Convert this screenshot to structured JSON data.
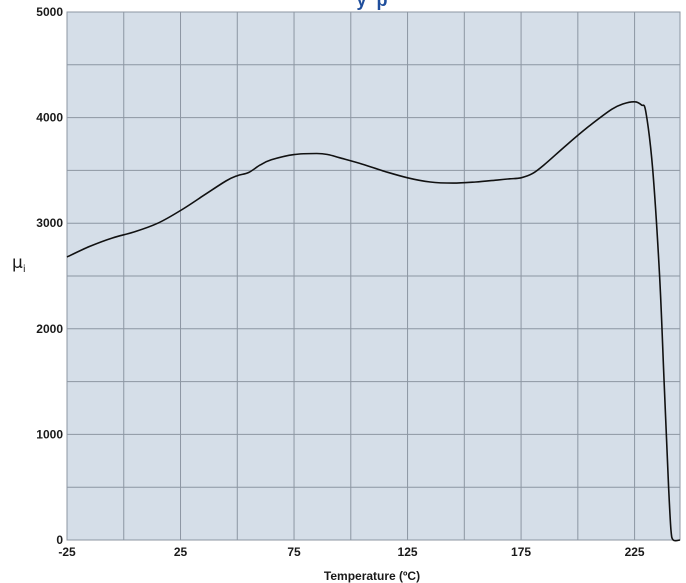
{
  "colors": {
    "plot_background": "#d5dee8",
    "grid": "#8c96a2",
    "curve": "#111111",
    "title": "#1f4e9c"
  },
  "chart_data": {
    "type": "line",
    "title_partial": "y  p",
    "xlabel": "Temperature (ºC)",
    "ylabel": "μ",
    "ylabel_subscript": "i",
    "xlim": [
      -25,
      245
    ],
    "ylim": [
      0,
      5000
    ],
    "x_ticks": [
      -25,
      25,
      75,
      125,
      175,
      225
    ],
    "y_ticks": [
      0,
      1000,
      2000,
      3000,
      4000,
      5000
    ],
    "grid": true,
    "series": [
      {
        "x": [
          -25,
          -15,
          -5,
          5,
          15,
          25,
          35,
          45,
          50,
          55,
          60,
          65,
          75,
          85,
          90,
          95,
          105,
          115,
          125,
          135,
          145,
          155,
          165,
          170,
          175,
          180,
          185,
          195,
          205,
          215,
          220,
          225,
          228,
          230,
          233,
          236,
          238,
          240,
          241,
          242,
          245
        ],
        "y": [
          2680,
          2780,
          2860,
          2920,
          3000,
          3120,
          3260,
          3400,
          3450,
          3480,
          3550,
          3600,
          3650,
          3660,
          3650,
          3620,
          3560,
          3490,
          3430,
          3390,
          3380,
          3390,
          3410,
          3420,
          3430,
          3470,
          3550,
          3740,
          3920,
          4080,
          4130,
          4150,
          4120,
          4050,
          3500,
          2500,
          1500,
          500,
          100,
          0,
          0
        ]
      }
    ]
  }
}
